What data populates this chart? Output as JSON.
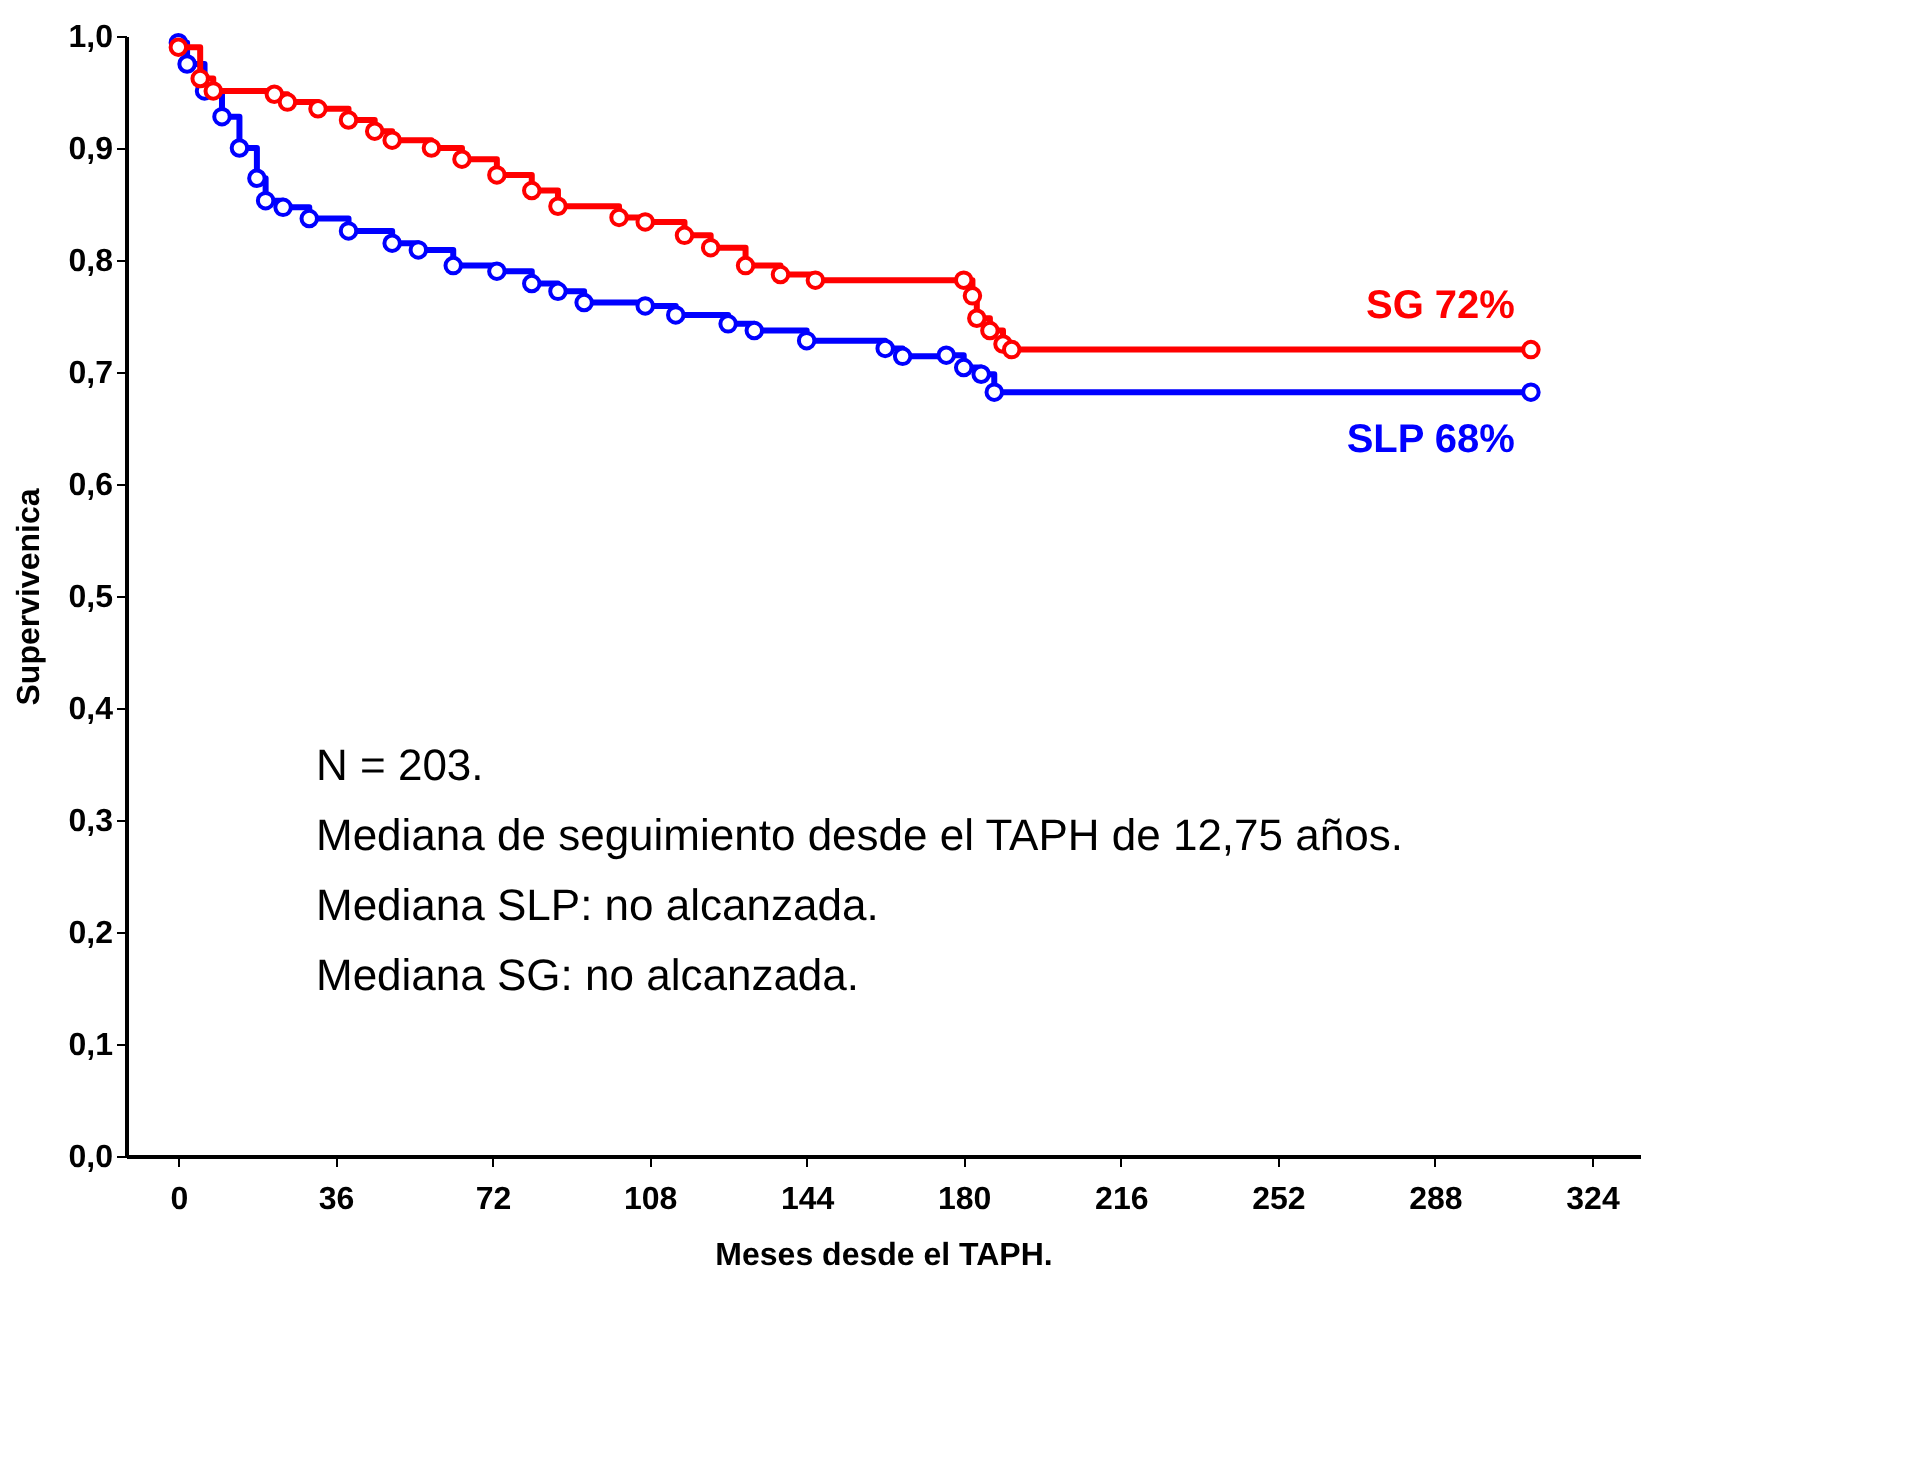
{
  "chart_data": {
    "type": "step",
    "xlabel": "Meses desde el TAPH.",
    "ylabel": "Supervivenica",
    "xlim": [
      -12,
      335
    ],
    "xticks": [
      0,
      36,
      72,
      108,
      144,
      180,
      216,
      252,
      288,
      324
    ],
    "ylim": [
      0,
      1.0
    ],
    "yticks": [
      {
        "value": 0,
        "label": "0,0"
      },
      {
        "value": 0.1,
        "label": "0,1"
      },
      {
        "value": 0.2,
        "label": "0,2"
      },
      {
        "value": 0.3,
        "label": "0,3"
      },
      {
        "value": 0.4,
        "label": "0,4"
      },
      {
        "value": 0.5,
        "label": "0,5"
      },
      {
        "value": 0.6,
        "label": "0,6"
      },
      {
        "value": 0.7,
        "label": "0,7"
      },
      {
        "value": 0.8,
        "label": "0,8"
      },
      {
        "value": 0.9,
        "label": "0,9"
      },
      {
        "value": 1.0,
        "label": "1,0"
      }
    ],
    "grid": false,
    "marker": "circle",
    "series": [
      {
        "name": "SG 72%",
        "color": "#ff0000",
        "x": [
          0,
          5,
          8,
          22,
          25,
          32,
          39,
          45,
          49,
          58,
          65,
          73,
          81,
          87,
          101,
          107,
          116,
          122,
          130,
          138,
          146,
          180,
          182,
          183,
          186,
          189,
          191,
          310
        ],
        "values": [
          0.99,
          0.962,
          0.951,
          0.948,
          0.941,
          0.935,
          0.925,
          0.915,
          0.907,
          0.9,
          0.89,
          0.876,
          0.862,
          0.848,
          0.838,
          0.834,
          0.822,
          0.811,
          0.795,
          0.787,
          0.782,
          0.782,
          0.768,
          0.748,
          0.737,
          0.725,
          0.72,
          0.72
        ]
      },
      {
        "name": "SLP 68%",
        "color": "#0000ff",
        "x": [
          0,
          2,
          6,
          10,
          14,
          18,
          20,
          24,
          30,
          39,
          49,
          55,
          63,
          73,
          81,
          87,
          93,
          107,
          114,
          126,
          132,
          144,
          162,
          166,
          176,
          180,
          184,
          187,
          310
        ],
        "values": [
          0.994,
          0.975,
          0.951,
          0.928,
          0.9,
          0.873,
          0.853,
          0.847,
          0.837,
          0.826,
          0.815,
          0.809,
          0.795,
          0.79,
          0.779,
          0.772,
          0.762,
          0.759,
          0.751,
          0.743,
          0.737,
          0.728,
          0.721,
          0.714,
          0.715,
          0.704,
          0.698,
          0.682,
          0.682
        ]
      }
    ],
    "annotations": [
      "N = 203.",
      "Mediana de seguimiento desde el TAPH de 12,75 años.",
      "Mediana SLP: no alcanzada.",
      "Mediana SG: no alcanzada."
    ]
  }
}
